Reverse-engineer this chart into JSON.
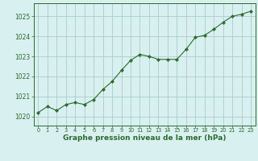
{
  "x": [
    0,
    1,
    2,
    3,
    4,
    5,
    6,
    7,
    8,
    9,
    10,
    11,
    12,
    13,
    14,
    15,
    16,
    17,
    18,
    19,
    20,
    21,
    22,
    23
  ],
  "y": [
    1020.2,
    1020.5,
    1020.3,
    1020.6,
    1020.7,
    1020.6,
    1020.85,
    1021.35,
    1021.75,
    1022.3,
    1022.8,
    1023.1,
    1023.0,
    1022.85,
    1022.85,
    1022.85,
    1023.35,
    1023.95,
    1024.05,
    1024.35,
    1024.7,
    1025.0,
    1025.1,
    1025.25
  ],
  "line_color": "#2d6a2d",
  "marker": "D",
  "marker_size": 2.2,
  "bg_color": "#d9f0f0",
  "grid_color": "#aacccc",
  "xlabel": "Graphe pression niveau de la mer (hPa)",
  "xlabel_color": "#2d6a2d",
  "ylabel_ticks": [
    1020,
    1021,
    1022,
    1023,
    1024,
    1025
  ],
  "ylim": [
    1019.55,
    1025.65
  ],
  "xlim": [
    -0.5,
    23.5
  ],
  "xtick_fontsize": 4.8,
  "ytick_fontsize": 5.5,
  "xlabel_fontsize": 6.5
}
